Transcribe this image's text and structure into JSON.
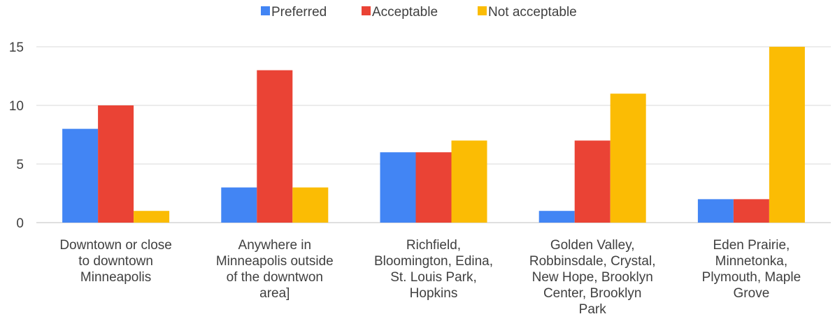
{
  "chart_data": {
    "type": "bar",
    "title": "",
    "xlabel": "",
    "ylabel": "",
    "ylim": [
      0,
      15
    ],
    "yticks": [
      0,
      5,
      10,
      15
    ],
    "grid": true,
    "legend_position": "top-center",
    "categories": [
      [
        "Downtown or close",
        "to downtown",
        "Minneapolis"
      ],
      [
        "Anywhere in",
        "Minneapolis outside",
        "of the downtwon",
        "area]"
      ],
      [
        "Richfield,",
        "Bloomington, Edina,",
        "St. Louis Park,",
        "Hopkins"
      ],
      [
        "Golden Valley,",
        "Robbinsdale, Crystal,",
        "New Hope, Brooklyn",
        "Center, Brooklyn",
        "Park"
      ],
      [
        "Eden Prairie,",
        "Minnetonka,",
        "Plymouth, Maple",
        "Grove"
      ]
    ],
    "series": [
      {
        "name": "Preferred",
        "color": "#4285F4",
        "values": [
          8,
          3,
          6,
          1,
          2
        ]
      },
      {
        "name": "Acceptable",
        "color": "#EA4335",
        "values": [
          10,
          13,
          6,
          7,
          2
        ]
      },
      {
        "name": "Not acceptable",
        "color": "#FBBC04",
        "values": [
          1,
          3,
          7,
          11,
          15
        ]
      }
    ]
  }
}
